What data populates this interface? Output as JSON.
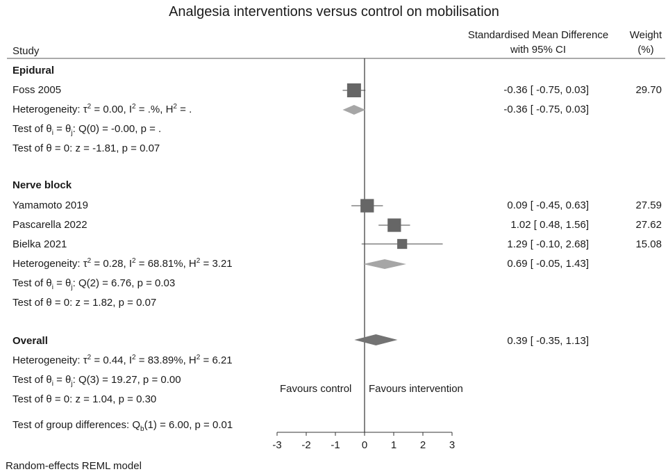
{
  "title": "Analgesia interventions versus control on mobilisation",
  "headers": {
    "study": "Study",
    "smd_line1": "Standardised Mean Difference",
    "smd_line2": "with 95% CI",
    "weight_line1": "Weight",
    "weight_line2": "(%)"
  },
  "groups": {
    "epidural": {
      "label": "Epidural",
      "studies": [
        {
          "name": "Foss 2005",
          "ci_text": "-0.36 [ -0.75,  0.03]",
          "weight": "29.70"
        }
      ],
      "subtotal_ci_text": "-0.36 [ -0.75,  0.03]",
      "heterogeneity": {
        "tau2": "0.00",
        "i2": ".%",
        "h2": "."
      },
      "test_theta_i": {
        "df": "0",
        "q": "-0.00",
        "p": "."
      },
      "test_theta0": {
        "z": "-1.81",
        "p": "0.07"
      }
    },
    "nerve_block": {
      "label": "Nerve block",
      "studies": [
        {
          "name": "Yamamoto 2019",
          "ci_text": "0.09 [ -0.45,  0.63]",
          "weight": "27.59"
        },
        {
          "name": "Pascarella 2022",
          "ci_text": "1.02 [  0.48,  1.56]",
          "weight": "27.62"
        },
        {
          "name": "Bielka 2021",
          "ci_text": "1.29 [ -0.10,  2.68]",
          "weight": "15.08"
        }
      ],
      "subtotal_ci_text": "0.69 [ -0.05,  1.43]",
      "heterogeneity": {
        "tau2": "0.28",
        "i2": "68.81%",
        "h2": "3.21"
      },
      "test_theta_i": {
        "df": "2",
        "q": "6.76",
        "p": "0.03"
      },
      "test_theta0": {
        "z": "1.82",
        "p": "0.07"
      }
    },
    "overall": {
      "label": "Overall",
      "ci_text": "0.39 [ -0.35,  1.13]",
      "heterogeneity": {
        "tau2": "0.44",
        "i2": "83.89%",
        "h2": "6.21"
      },
      "test_theta_i": {
        "df": "3",
        "q": "19.27",
        "p": "0.00"
      },
      "test_theta0": {
        "z": "1.04",
        "p": "0.30"
      }
    }
  },
  "group_diff": {
    "df": "1",
    "q": "6.00",
    "p": "0.01"
  },
  "favours": {
    "left": "Favours control",
    "right": "Favours intervention"
  },
  "footer": "Random-effects REML model",
  "chart_data": {
    "type": "forest",
    "xlim": [
      -3,
      3
    ],
    "x_ticks": [
      -3,
      -2,
      -1,
      0,
      1,
      2,
      3
    ],
    "x_tick_labels": [
      "-3",
      "-2",
      "-1",
      "0",
      "1",
      "2",
      "3"
    ],
    "null_line": 0,
    "studies": [
      {
        "name": "Foss 2005",
        "group": "Epidural",
        "smd": -0.36,
        "ci_low": -0.75,
        "ci_high": 0.03,
        "weight": 29.7
      },
      {
        "name": "Yamamoto 2019",
        "group": "Nerve block",
        "smd": 0.09,
        "ci_low": -0.45,
        "ci_high": 0.63,
        "weight": 27.59
      },
      {
        "name": "Pascarella 2022",
        "group": "Nerve block",
        "smd": 1.02,
        "ci_low": 0.48,
        "ci_high": 1.56,
        "weight": 27.62
      },
      {
        "name": "Bielka 2021",
        "group": "Nerve block",
        "smd": 1.29,
        "ci_low": -0.1,
        "ci_high": 2.68,
        "weight": 15.08
      }
    ],
    "subgroups": [
      {
        "name": "Epidural",
        "smd": -0.36,
        "ci_low": -0.75,
        "ci_high": 0.03
      },
      {
        "name": "Nerve block",
        "smd": 0.69,
        "ci_low": -0.05,
        "ci_high": 1.43
      }
    ],
    "overall": {
      "smd": 0.39,
      "ci_low": -0.35,
      "ci_high": 1.13
    },
    "colors": {
      "study_marker": "#666666",
      "subgroup_diamond": "#a6a6a6",
      "overall_diamond": "#737373",
      "line": "#333333"
    }
  }
}
